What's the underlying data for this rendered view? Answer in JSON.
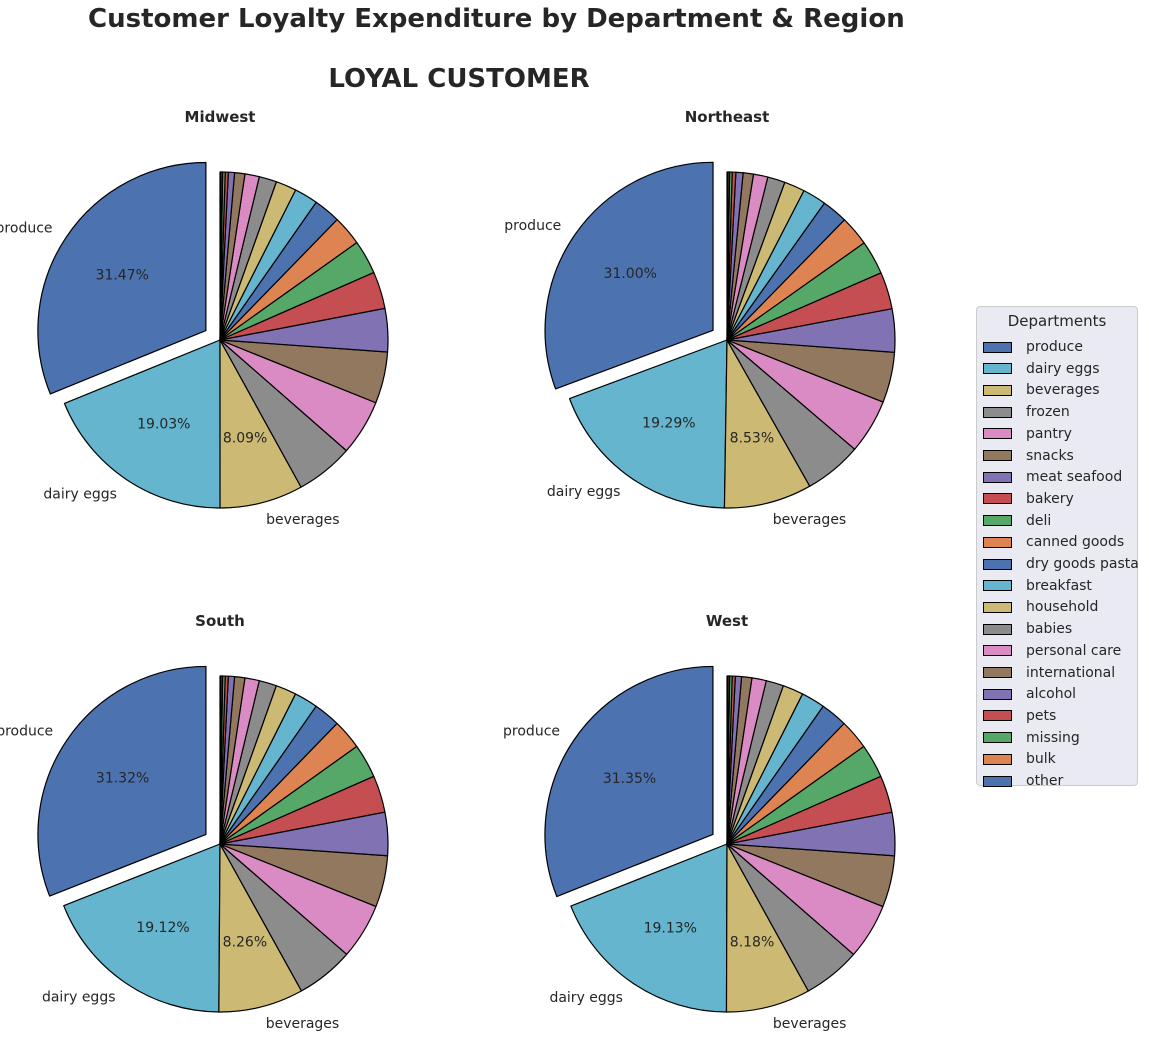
{
  "title": "Customer Loyalty Expenditure by Department & Region",
  "subtitle": "LOYAL CUSTOMER",
  "legend_title": "Departments",
  "chart_data": [
    {
      "type": "pie",
      "title": "Midwest",
      "exploded": [
        "produce"
      ],
      "categories": [
        "produce",
        "dairy eggs",
        "beverages",
        "frozen",
        "pantry",
        "snacks",
        "meat seafood",
        "bakery",
        "deli",
        "canned goods",
        "dry goods pasta",
        "breakfast",
        "household",
        "babies",
        "personal care",
        "international",
        "alcohol",
        "pets",
        "missing",
        "bulk",
        "other"
      ],
      "values": [
        31.47,
        19.03,
        8.09,
        5.6,
        5.4,
        5.0,
        4.2,
        3.6,
        3.3,
        2.9,
        2.6,
        2.3,
        2.0,
        1.7,
        1.4,
        1.0,
        0.6,
        0.3,
        0.25,
        0.15,
        0.1
      ],
      "slice_labels": {
        "produce": "produce",
        "dairy eggs": "dairy eggs",
        "beverages": "beverages"
      },
      "percent_labels": {
        "produce": "31.47%",
        "dairy eggs": "19.03%",
        "beverages": "8.09%"
      }
    },
    {
      "type": "pie",
      "title": "Northeast",
      "exploded": [
        "produce"
      ],
      "categories": [
        "produce",
        "dairy eggs",
        "beverages",
        "frozen",
        "pantry",
        "snacks",
        "meat seafood",
        "bakery",
        "deli",
        "canned goods",
        "dry goods pasta",
        "breakfast",
        "household",
        "babies",
        "personal care",
        "international",
        "alcohol",
        "pets",
        "missing",
        "bulk",
        "other"
      ],
      "values": [
        31.0,
        19.29,
        8.53,
        5.6,
        5.3,
        4.9,
        4.2,
        3.6,
        3.3,
        2.9,
        2.5,
        2.3,
        2.0,
        1.7,
        1.4,
        1.0,
        0.7,
        0.35,
        0.25,
        0.15,
        0.1
      ],
      "slice_labels": {
        "produce": "produce",
        "dairy eggs": "dairy eggs",
        "beverages": "beverages"
      },
      "percent_labels": {
        "produce": "31.00%",
        "dairy eggs": "19.29%",
        "beverages": "8.53%"
      }
    },
    {
      "type": "pie",
      "title": "South",
      "exploded": [
        "produce"
      ],
      "categories": [
        "produce",
        "dairy eggs",
        "beverages",
        "frozen",
        "pantry",
        "snacks",
        "meat seafood",
        "bakery",
        "deli",
        "canned goods",
        "dry goods pasta",
        "breakfast",
        "household",
        "babies",
        "personal care",
        "international",
        "alcohol",
        "pets",
        "missing",
        "bulk",
        "other"
      ],
      "values": [
        31.32,
        19.12,
        8.26,
        5.6,
        5.4,
        5.0,
        4.2,
        3.6,
        3.3,
        2.9,
        2.6,
        2.3,
        2.0,
        1.7,
        1.4,
        1.0,
        0.6,
        0.3,
        0.25,
        0.15,
        0.1
      ],
      "slice_labels": {
        "produce": "produce",
        "dairy eggs": "dairy eggs",
        "beverages": "beverages"
      },
      "percent_labels": {
        "produce": "31.32%",
        "dairy eggs": "19.12%",
        "beverages": "8.26%"
      }
    },
    {
      "type": "pie",
      "title": "West",
      "exploded": [
        "produce"
      ],
      "categories": [
        "produce",
        "dairy eggs",
        "beverages",
        "frozen",
        "pantry",
        "snacks",
        "meat seafood",
        "bakery",
        "deli",
        "canned goods",
        "dry goods pasta",
        "breakfast",
        "household",
        "babies",
        "personal care",
        "international",
        "alcohol",
        "pets",
        "missing",
        "bulk",
        "other"
      ],
      "values": [
        31.35,
        19.13,
        8.18,
        5.6,
        5.4,
        5.0,
        4.2,
        3.6,
        3.3,
        2.9,
        2.6,
        2.3,
        2.0,
        1.7,
        1.4,
        1.0,
        0.6,
        0.3,
        0.25,
        0.15,
        0.1
      ],
      "slice_labels": {
        "produce": "produce",
        "dairy eggs": "dairy eggs",
        "beverages": "beverages"
      },
      "percent_labels": {
        "produce": "31.35%",
        "dairy eggs": "19.13%",
        "beverages": "8.18%"
      }
    }
  ],
  "legend": [
    {
      "label": "produce",
      "color": "#4c72b0"
    },
    {
      "label": "dairy eggs",
      "color": "#64b5cd"
    },
    {
      "label": "beverages",
      "color": "#ccb974"
    },
    {
      "label": "frozen",
      "color": "#8c8c8c"
    },
    {
      "label": "pantry",
      "color": "#da8bc3"
    },
    {
      "label": "snacks",
      "color": "#937860"
    },
    {
      "label": "meat seafood",
      "color": "#8172b3"
    },
    {
      "label": "bakery",
      "color": "#c44e52"
    },
    {
      "label": "deli",
      "color": "#55a868"
    },
    {
      "label": "canned goods",
      "color": "#dd8452"
    },
    {
      "label": "dry goods pasta",
      "color": "#4c72b0"
    },
    {
      "label": "breakfast",
      "color": "#64b5cd"
    },
    {
      "label": "household",
      "color": "#ccb974"
    },
    {
      "label": "babies",
      "color": "#8c8c8c"
    },
    {
      "label": "personal care",
      "color": "#da8bc3"
    },
    {
      "label": "international",
      "color": "#937860"
    },
    {
      "label": "alcohol",
      "color": "#8172b3"
    },
    {
      "label": "pets",
      "color": "#c44e52"
    },
    {
      "label": "missing",
      "color": "#55a868"
    },
    {
      "label": "bulk",
      "color": "#dd8452"
    },
    {
      "label": "other",
      "color": "#4c72b0"
    }
  ]
}
